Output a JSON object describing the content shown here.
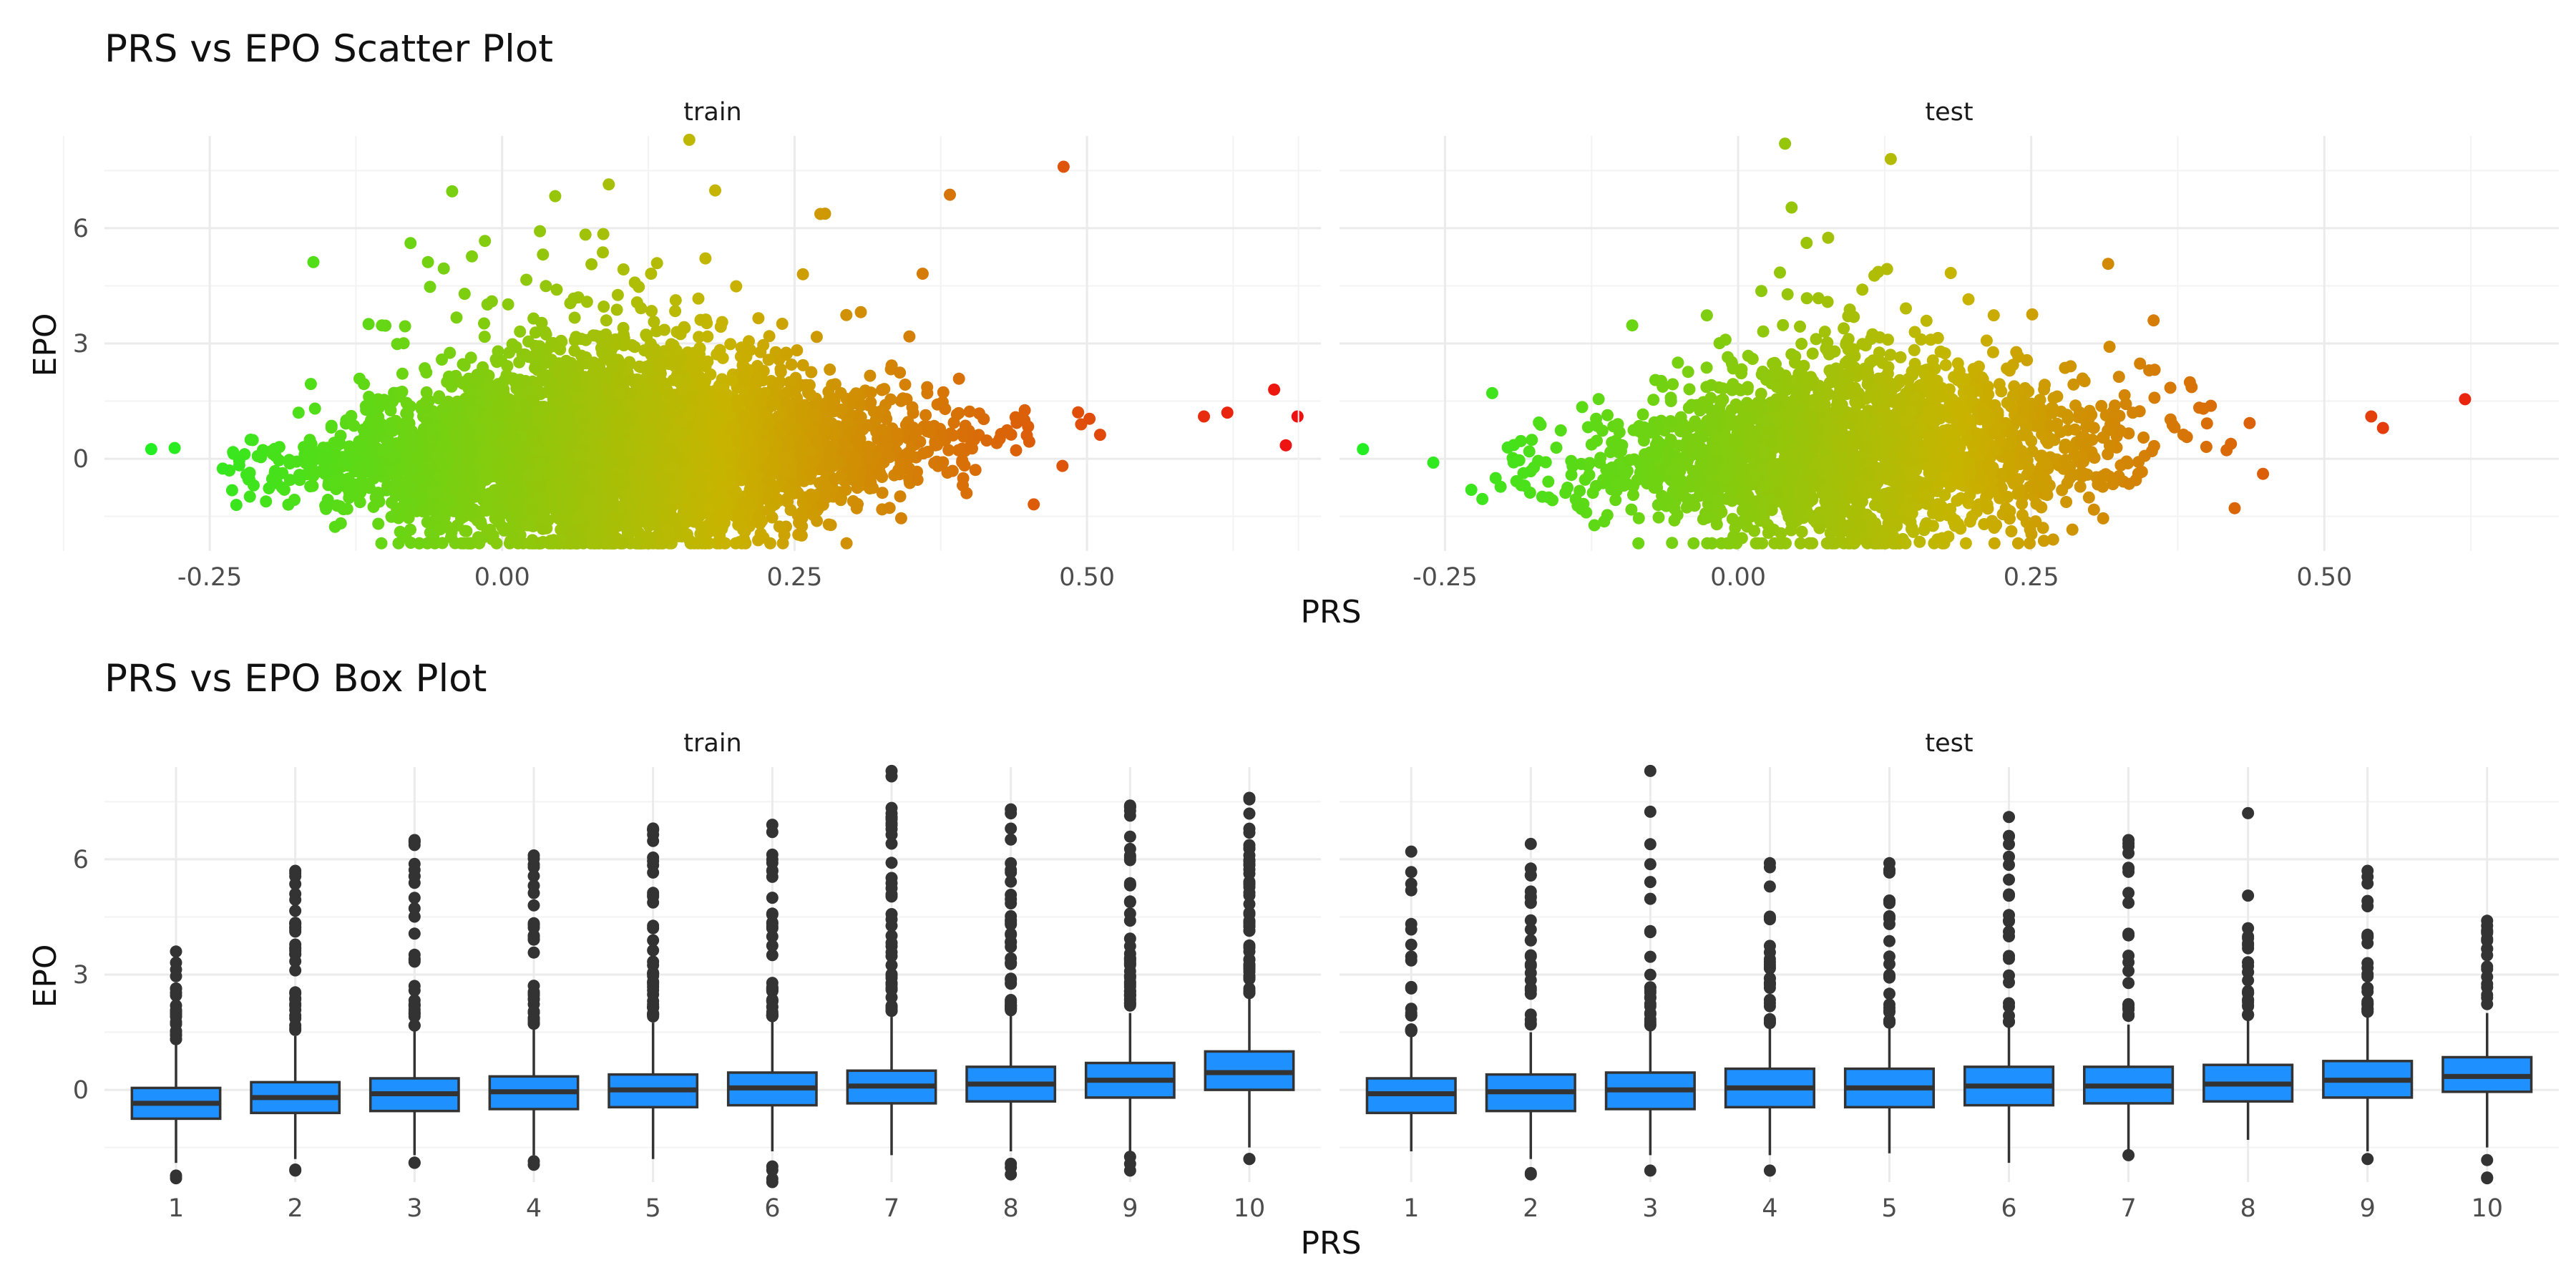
{
  "chart_data": [
    {
      "type": "scatter",
      "title": "PRS vs EPO Scatter Plot",
      "xlabel": "PRS",
      "ylabel": "EPO",
      "facets": [
        "train",
        "test"
      ],
      "xlim": [
        -0.34,
        0.7
      ],
      "ylim": [
        -2.4,
        8.4
      ],
      "x_ticks": [
        -0.25,
        0.0,
        0.25,
        0.5
      ],
      "x_tick_labels": [
        "-0.25",
        "0.00",
        "0.25",
        "0.50"
      ],
      "y_ticks": [
        0,
        3,
        6
      ],
      "y_tick_labels": [
        "0",
        "3",
        "6"
      ],
      "color_gradient": [
        "#22ee22",
        "#c8b400",
        "#ee1111"
      ],
      "grid": true,
      "series": [
        {
          "facet": "train",
          "n_points": 5000,
          "center_x": 0.1,
          "spread_x": 0.12,
          "outliers": [
            [
              -0.3,
              0.25
            ],
            [
              -0.28,
              0.28
            ],
            [
              0.16,
              8.3
            ],
            [
              0.66,
              1.8
            ],
            [
              0.67,
              0.35
            ],
            [
              0.68,
              1.1
            ],
            [
              0.62,
              1.2
            ],
            [
              0.6,
              1.1
            ],
            [
              0.48,
              7.6
            ]
          ]
        },
        {
          "facet": "test",
          "n_points": 2400,
          "center_x": 0.1,
          "spread_x": 0.11,
          "outliers": [
            [
              -0.32,
              0.25
            ],
            [
              -0.26,
              -0.1
            ],
            [
              0.04,
              8.2
            ],
            [
              0.62,
              1.55
            ],
            [
              0.55,
              0.8
            ],
            [
              0.54,
              1.1
            ]
          ]
        }
      ]
    },
    {
      "type": "box",
      "title": "PRS vs EPO Box Plot",
      "xlabel": "PRS",
      "ylabel": "EPO",
      "facets": [
        "train",
        "test"
      ],
      "categories": [
        "1",
        "2",
        "3",
        "4",
        "5",
        "6",
        "7",
        "8",
        "9",
        "10"
      ],
      "ylim": [
        -2.4,
        8.4
      ],
      "y_ticks": [
        0,
        3,
        6
      ],
      "y_tick_labels": [
        "0",
        "3",
        "6"
      ],
      "box_color": "#1e90ff",
      "grid": true,
      "series": [
        {
          "facet": "train",
          "boxes": [
            {
              "q1": -0.75,
              "median": -0.35,
              "q3": 0.05,
              "lo": -1.9,
              "hi": 1.2,
              "out_hi_max": 3.6,
              "out_lo_min": -2.3,
              "n_out_hi": 24,
              "n_out_lo": 2
            },
            {
              "q1": -0.6,
              "median": -0.2,
              "q3": 0.2,
              "lo": -1.8,
              "hi": 1.4,
              "out_hi_max": 5.7,
              "out_lo_min": -2.1,
              "n_out_hi": 34,
              "n_out_lo": 2
            },
            {
              "q1": -0.55,
              "median": -0.1,
              "q3": 0.3,
              "lo": -1.7,
              "hi": 1.55,
              "out_hi_max": 6.5,
              "out_lo_min": -1.9,
              "n_out_hi": 30,
              "n_out_lo": 2
            },
            {
              "q1": -0.5,
              "median": -0.05,
              "q3": 0.35,
              "lo": -1.7,
              "hi": 1.6,
              "out_hi_max": 6.1,
              "out_lo_min": -1.95,
              "n_out_hi": 32,
              "n_out_lo": 2
            },
            {
              "q1": -0.45,
              "median": 0.0,
              "q3": 0.4,
              "lo": -1.8,
              "hi": 1.75,
              "out_hi_max": 6.8,
              "out_lo_min": -1.8,
              "n_out_hi": 40,
              "n_out_lo": 0
            },
            {
              "q1": -0.4,
              "median": 0.05,
              "q3": 0.45,
              "lo": -1.6,
              "hi": 1.8,
              "out_hi_max": 6.9,
              "out_lo_min": -2.4,
              "n_out_hi": 38,
              "n_out_lo": 4
            },
            {
              "q1": -0.35,
              "median": 0.1,
              "q3": 0.5,
              "lo": -1.7,
              "hi": 1.9,
              "out_hi_max": 8.3,
              "out_lo_min": -1.7,
              "n_out_hi": 44,
              "n_out_lo": 0
            },
            {
              "q1": -0.3,
              "median": 0.15,
              "q3": 0.6,
              "lo": -1.6,
              "hi": 1.95,
              "out_hi_max": 7.3,
              "out_lo_min": -2.2,
              "n_out_hi": 44,
              "n_out_lo": 3
            },
            {
              "q1": -0.2,
              "median": 0.25,
              "q3": 0.7,
              "lo": -1.6,
              "hi": 2.0,
              "out_hi_max": 7.4,
              "out_lo_min": -2.1,
              "n_out_hi": 48,
              "n_out_lo": 3
            },
            {
              "q1": 0.0,
              "median": 0.45,
              "q3": 1.0,
              "lo": -1.5,
              "hi": 2.4,
              "out_hi_max": 7.6,
              "out_lo_min": -1.8,
              "n_out_hi": 56,
              "n_out_lo": 2
            }
          ]
        },
        {
          "facet": "test",
          "boxes": [
            {
              "q1": -0.6,
              "median": -0.1,
              "q3": 0.3,
              "lo": -1.6,
              "hi": 1.4,
              "out_hi_max": 6.2,
              "out_lo_min": -1.6,
              "n_out_hi": 22,
              "n_out_lo": 0
            },
            {
              "q1": -0.55,
              "median": -0.05,
              "q3": 0.4,
              "lo": -1.8,
              "hi": 1.5,
              "out_hi_max": 6.4,
              "out_lo_min": -2.2,
              "n_out_hi": 26,
              "n_out_lo": 2
            },
            {
              "q1": -0.5,
              "median": 0.0,
              "q3": 0.45,
              "lo": -1.7,
              "hi": 1.55,
              "out_hi_max": 8.3,
              "out_lo_min": -2.1,
              "n_out_hi": 24,
              "n_out_lo": 1
            },
            {
              "q1": -0.45,
              "median": 0.05,
              "q3": 0.55,
              "lo": -1.7,
              "hi": 1.6,
              "out_hi_max": 5.9,
              "out_lo_min": -2.1,
              "n_out_hi": 26,
              "n_out_lo": 1
            },
            {
              "q1": -0.45,
              "median": 0.05,
              "q3": 0.55,
              "lo": -1.65,
              "hi": 1.6,
              "out_hi_max": 5.9,
              "out_lo_min": -1.65,
              "n_out_hi": 28,
              "n_out_lo": 0
            },
            {
              "q1": -0.4,
              "median": 0.1,
              "q3": 0.6,
              "lo": -1.9,
              "hi": 1.65,
              "out_hi_max": 7.1,
              "out_lo_min": -1.9,
              "n_out_hi": 24,
              "n_out_lo": 0
            },
            {
              "q1": -0.35,
              "median": 0.1,
              "q3": 0.6,
              "lo": -1.6,
              "hi": 1.7,
              "out_hi_max": 6.5,
              "out_lo_min": -1.7,
              "n_out_hi": 24,
              "n_out_lo": 1
            },
            {
              "q1": -0.3,
              "median": 0.15,
              "q3": 0.65,
              "lo": -1.3,
              "hi": 1.8,
              "out_hi_max": 7.2,
              "out_lo_min": -1.3,
              "n_out_hi": 26,
              "n_out_lo": 0
            },
            {
              "q1": -0.2,
              "median": 0.25,
              "q3": 0.75,
              "lo": -1.6,
              "hi": 1.9,
              "out_hi_max": 5.7,
              "out_lo_min": -1.8,
              "n_out_hi": 24,
              "n_out_lo": 1
            },
            {
              "q1": -0.05,
              "median": 0.35,
              "q3": 0.85,
              "lo": -1.5,
              "hi": 2.0,
              "out_hi_max": 4.4,
              "out_lo_min": -2.3,
              "n_out_hi": 18,
              "n_out_lo": 3
            }
          ]
        }
      ]
    }
  ]
}
